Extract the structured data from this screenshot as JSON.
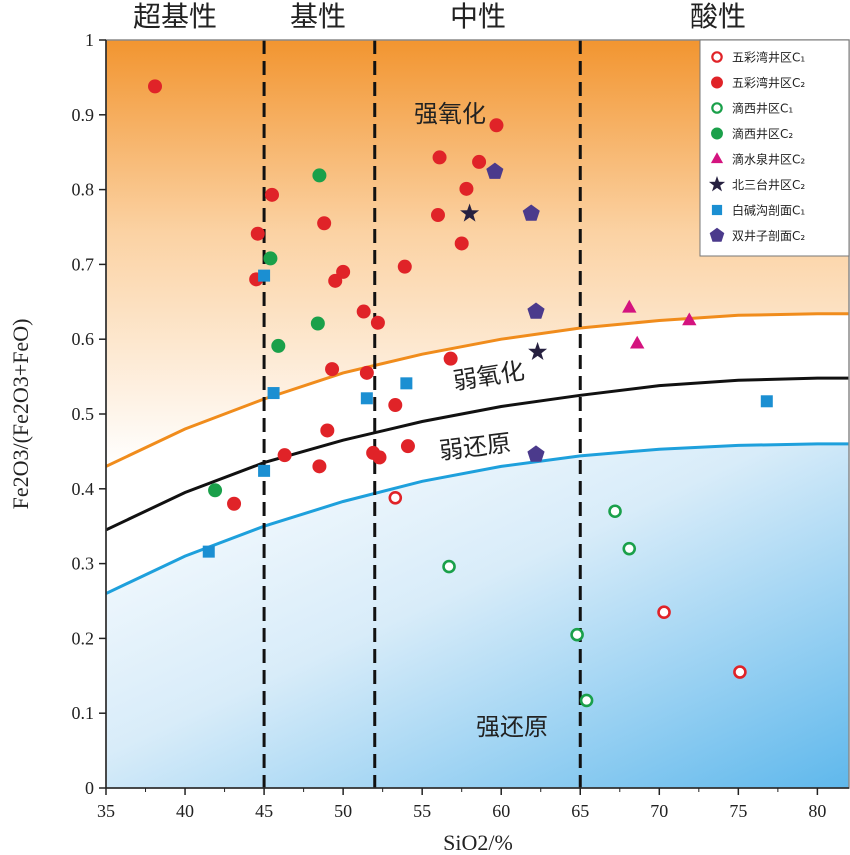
{
  "chart_data": {
    "type": "scatter",
    "title": "",
    "xlabel": "SiO2/%",
    "ylabel": "Fe2O3/(Fe2O3+FeO)",
    "xlim": [
      35,
      82
    ],
    "ylim": [
      0,
      1
    ],
    "x_ticks": [
      "35",
      "40",
      "45",
      "50",
      "55",
      "60",
      "65",
      "70",
      "75",
      "80"
    ],
    "y_ticks": [
      "0",
      "0.1",
      "0.2",
      "0.3",
      "0.4",
      "0.5",
      "0.6",
      "0.7",
      "0.8",
      "0.9",
      "1"
    ],
    "legend_position": "top-right",
    "grid": false,
    "boundaries": [
      {
        "label": "超基性|基性",
        "x": 45
      },
      {
        "label": "基性|中性",
        "x": 52
      },
      {
        "label": "中性|酸性",
        "x": 65
      }
    ],
    "zone_labels": [
      "超基性",
      "基性",
      "中性",
      "酸性"
    ],
    "region_labels": [
      "强氧化",
      "弱氧化",
      "弱还原",
      "强还原"
    ],
    "curves": [
      {
        "color": "#f08c1c",
        "points": [
          [
            35,
            0.43
          ],
          [
            40,
            0.48
          ],
          [
            45,
            0.52
          ],
          [
            50,
            0.555
          ],
          [
            55,
            0.58
          ],
          [
            60,
            0.6
          ],
          [
            65,
            0.615
          ],
          [
            70,
            0.625
          ],
          [
            75,
            0.632
          ],
          [
            80,
            0.634
          ],
          [
            82,
            0.634
          ]
        ]
      },
      {
        "color": "#111111",
        "points": [
          [
            35,
            0.345
          ],
          [
            40,
            0.395
          ],
          [
            45,
            0.435
          ],
          [
            50,
            0.465
          ],
          [
            55,
            0.49
          ],
          [
            60,
            0.51
          ],
          [
            65,
            0.525
          ],
          [
            70,
            0.538
          ],
          [
            75,
            0.545
          ],
          [
            80,
            0.548
          ],
          [
            82,
            0.548
          ]
        ]
      },
      {
        "color": "#1ea0dc",
        "points": [
          [
            35,
            0.26
          ],
          [
            40,
            0.31
          ],
          [
            45,
            0.35
          ],
          [
            50,
            0.383
          ],
          [
            55,
            0.41
          ],
          [
            60,
            0.43
          ],
          [
            65,
            0.444
          ],
          [
            70,
            0.453
          ],
          [
            75,
            0.458
          ],
          [
            80,
            0.46
          ],
          [
            82,
            0.46
          ]
        ]
      }
    ],
    "legend": [
      {
        "label": "五彩湾井区C₁",
        "shape": "circle-open",
        "color": "#e02328"
      },
      {
        "label": "五彩湾井区C₂",
        "shape": "circle",
        "color": "#e02328"
      },
      {
        "label": "滴西井区C₁",
        "shape": "circle-open",
        "color": "#1aa04a"
      },
      {
        "label": "滴西井区C₂",
        "shape": "circle",
        "color": "#1aa04a"
      },
      {
        "label": "滴水泉井区C₂",
        "shape": "triangle",
        "color": "#d4137f"
      },
      {
        "label": "北三台井区C₂",
        "shape": "star",
        "color": "#262040"
      },
      {
        "label": "白碱沟剖面C₁",
        "shape": "square",
        "color": "#1b8fd2"
      },
      {
        "label": "双井子剖面C₂",
        "shape": "pentagon",
        "color": "#4b3a8c"
      }
    ],
    "series": [
      {
        "name": "五彩湾井区C₁",
        "points": [
          [
            53.3,
            0.388
          ],
          [
            70.3,
            0.235
          ],
          [
            75.1,
            0.155
          ]
        ]
      },
      {
        "name": "五彩湾井区C₂",
        "points": [
          [
            38.1,
            0.938
          ],
          [
            44.6,
            0.741
          ],
          [
            44.5,
            0.68
          ],
          [
            45.5,
            0.793
          ],
          [
            46.3,
            0.445
          ],
          [
            48.5,
            0.43
          ],
          [
            48.8,
            0.755
          ],
          [
            49.0,
            0.478
          ],
          [
            49.3,
            0.56
          ],
          [
            49.5,
            0.678
          ],
          [
            50.0,
            0.69
          ],
          [
            51.3,
            0.637
          ],
          [
            51.5,
            0.555
          ],
          [
            51.9,
            0.448
          ],
          [
            52.2,
            0.622
          ],
          [
            52.3,
            0.442
          ],
          [
            53.3,
            0.512
          ],
          [
            53.9,
            0.697
          ],
          [
            54.1,
            0.457
          ],
          [
            56.0,
            0.766
          ],
          [
            56.1,
            0.843
          ],
          [
            56.8,
            0.574
          ],
          [
            57.5,
            0.728
          ],
          [
            57.8,
            0.801
          ],
          [
            58.6,
            0.837
          ],
          [
            59.7,
            0.886
          ],
          [
            43.1,
            0.38
          ]
        ]
      },
      {
        "name": "滴西井区C₁",
        "points": [
          [
            56.7,
            0.296
          ],
          [
            64.8,
            0.205
          ],
          [
            65.4,
            0.117
          ],
          [
            67.2,
            0.37
          ],
          [
            68.1,
            0.32
          ]
        ]
      },
      {
        "name": "滴西井区C₂",
        "points": [
          [
            41.9,
            0.398
          ],
          [
            45.4,
            0.708
          ],
          [
            45.9,
            0.591
          ],
          [
            48.4,
            0.621
          ],
          [
            48.5,
            0.819
          ]
        ]
      },
      {
        "name": "滴水泉井区C₂",
        "points": [
          [
            68.1,
            0.642
          ],
          [
            68.6,
            0.594
          ],
          [
            71.9,
            0.625
          ]
        ]
      },
      {
        "name": "北三台井区C₂",
        "points": [
          [
            58.0,
            0.768
          ],
          [
            62.3,
            0.583
          ]
        ]
      },
      {
        "name": "白碱沟剖面C₁",
        "points": [
          [
            41.5,
            0.316
          ],
          [
            45.0,
            0.685
          ],
          [
            45.0,
            0.424
          ],
          [
            45.6,
            0.528
          ],
          [
            51.5,
            0.521
          ],
          [
            54.0,
            0.541
          ],
          [
            76.8,
            0.517
          ]
        ]
      },
      {
        "name": "双井子剖面C₂",
        "points": [
          [
            59.6,
            0.824
          ],
          [
            61.9,
            0.768
          ],
          [
            62.2,
            0.637
          ],
          [
            62.2,
            0.446
          ]
        ]
      }
    ]
  }
}
